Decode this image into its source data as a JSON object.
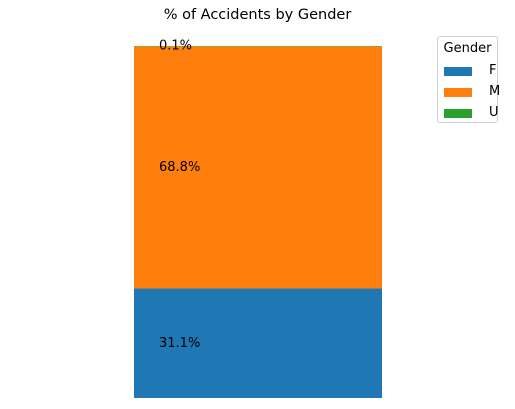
{
  "chart_data": {
    "type": "bar",
    "stacked": true,
    "normalized_percent": true,
    "title": "% of Accidents by Gender",
    "xlabel": "",
    "ylabel": "",
    "axes_visible": false,
    "grid": false,
    "ylim": [
      0,
      100
    ],
    "legend": {
      "title": "Gender",
      "placement": "top-right",
      "entries": [
        "F",
        "M",
        "U"
      ]
    },
    "series": [
      {
        "name": "F",
        "value": 31.1,
        "data_label": "31.1%",
        "color": "#1f77b4"
      },
      {
        "name": "M",
        "value": 68.8,
        "data_label": "68.8%",
        "color": "#ff7f0e"
      },
      {
        "name": "U",
        "value": 0.1,
        "data_label": "0.1%",
        "color": "#2ca02c"
      }
    ]
  }
}
